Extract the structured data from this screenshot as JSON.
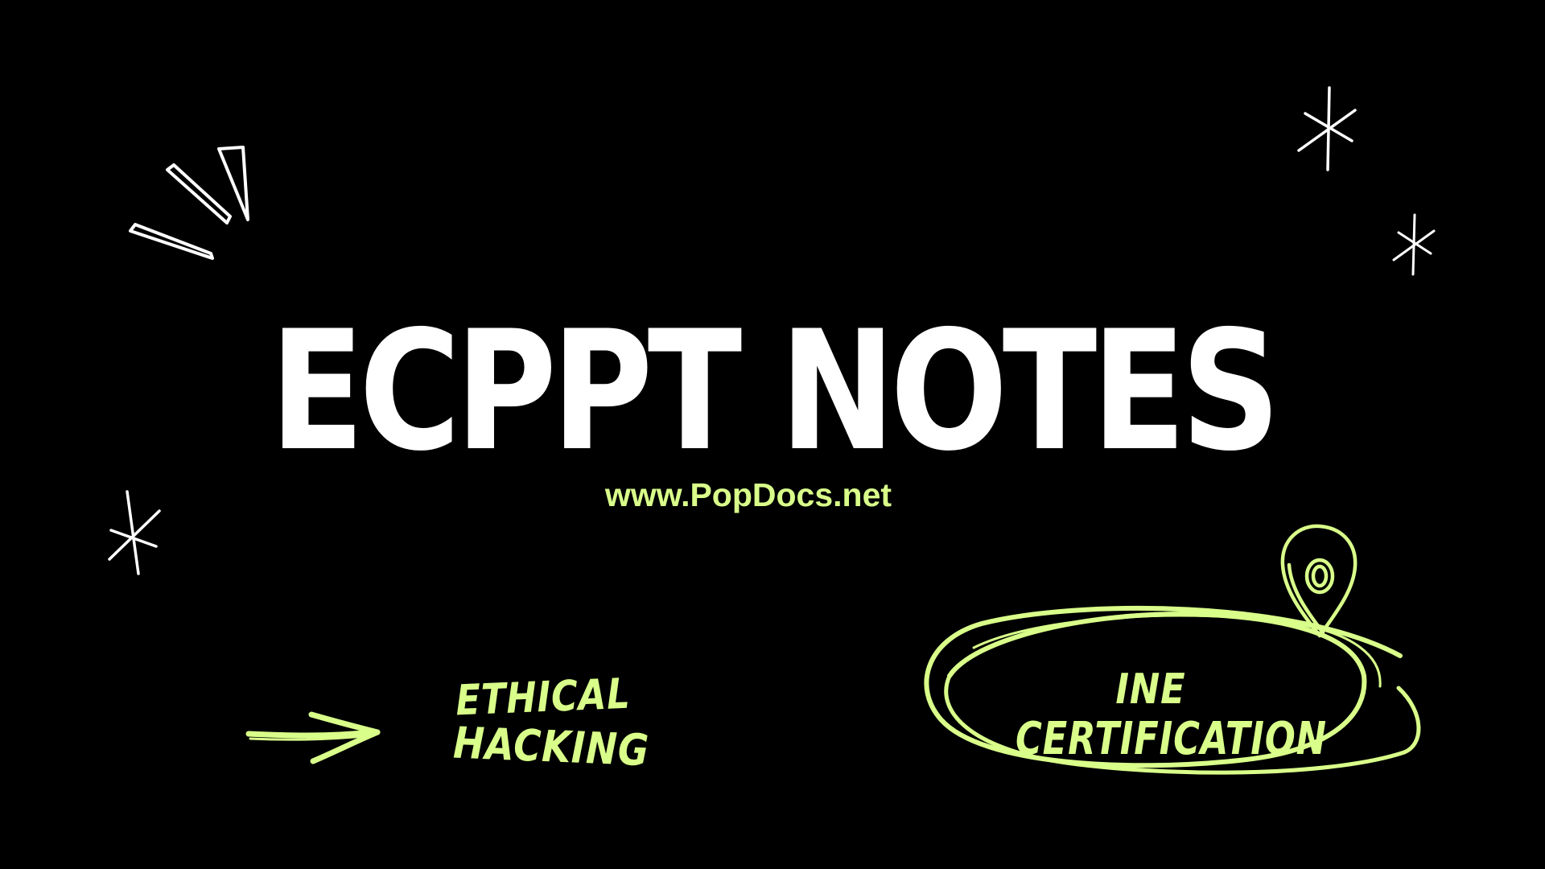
{
  "slide": {
    "title": "ECPPT NOTES",
    "url": "www.PopDocs.net",
    "tag_left_line1": "ETHICAL",
    "tag_left_line2": "HACKING",
    "tag_right_line1": "INE",
    "tag_right_line2": "CERTIFICATION"
  },
  "colors": {
    "background": "#000000",
    "title": "#ffffff",
    "accent": "#d9ff8a",
    "doodle": "#ffffff"
  },
  "icons": [
    "burst-lines-icon",
    "sparkle-icon",
    "arrow-icon",
    "scribble-circle-icon",
    "location-pin-icon"
  ]
}
